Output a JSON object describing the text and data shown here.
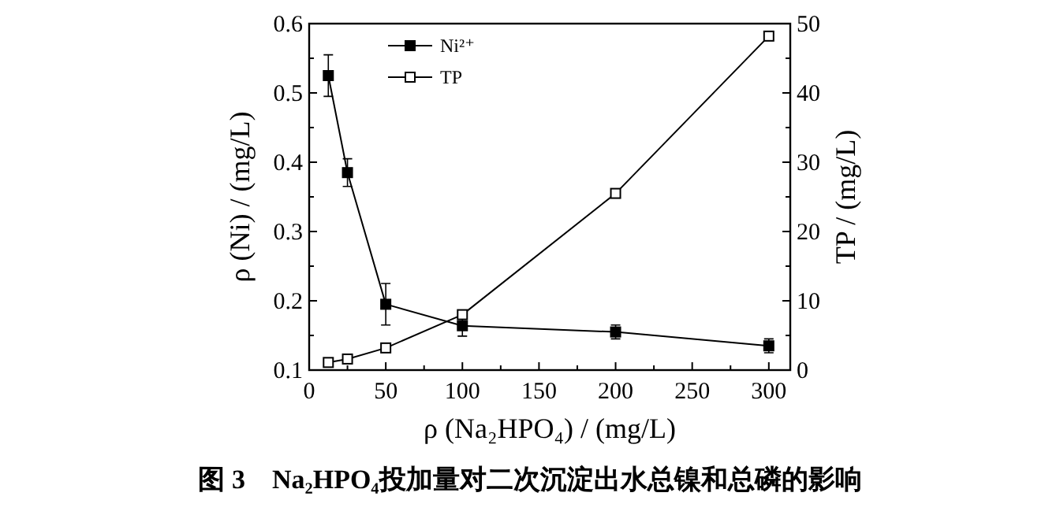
{
  "chart_data": {
    "type": "line",
    "xlabel": "ρ (Na₂HPO₄) / (mg/L)",
    "ylabel": "ρ (Ni) / (mg/L)",
    "y2label": "TP / (mg/L)",
    "annotations": [
      "图 3　Na₂HPO₄投加量对二次沉淀出水总镍和总磷的影响"
    ],
    "x": [
      12.5,
      25,
      50,
      100,
      200,
      300
    ],
    "series": [
      {
        "name": "Ni²⁺",
        "color": "#000000",
        "values": [
          0.525,
          0.385,
          0.195,
          0.164,
          0.155,
          0.135
        ],
        "errors": [
          0.03,
          0.02,
          0.03,
          0.015,
          0.01,
          0.01
        ]
      },
      {
        "name": "TP",
        "color": "#000000",
        "axis": "y2",
        "values": [
          1.1,
          1.6,
          3.2,
          8,
          25.5,
          48.2
        ]
      }
    ],
    "xlim": [
      0,
      314
    ],
    "xticks": [
      0,
      50,
      100,
      150,
      200,
      250,
      300
    ],
    "ylim": [
      0.1,
      0.6
    ],
    "yticks": [
      0.1,
      0.2,
      0.3,
      0.4,
      0.5,
      0.6
    ],
    "y2lim": [
      0,
      50
    ],
    "y2ticks": [
      0,
      10,
      20,
      30,
      40,
      50
    ],
    "marker": "square",
    "line_style": "solid",
    "legend": "top left",
    "grid": false
  }
}
